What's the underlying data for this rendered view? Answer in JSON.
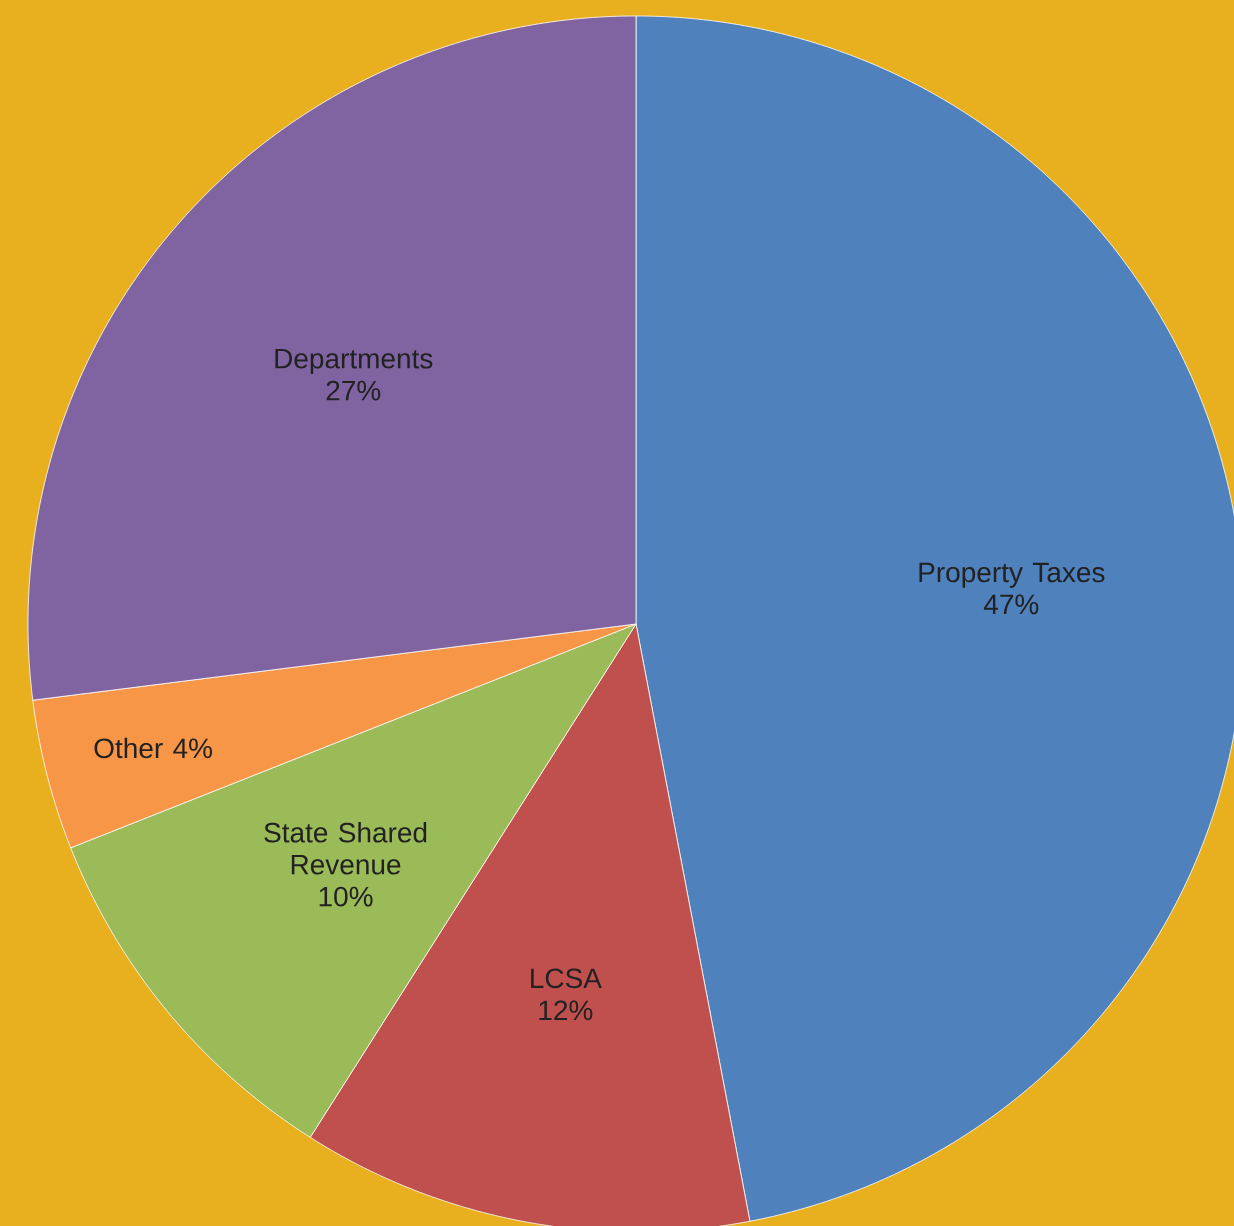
{
  "chart_data": {
    "type": "pie",
    "categories": [
      "Property Taxes",
      "LCSA",
      "State Shared Revenue",
      "Other",
      "Departments"
    ],
    "values": [
      47,
      12,
      10,
      4,
      27
    ],
    "value_labels": [
      "47%",
      "12%",
      "10%",
      "4%",
      "27%"
    ],
    "colors": [
      "#4f81bd",
      "#c0504d",
      "#9bbb59",
      "#f79646",
      "#8064a2"
    ]
  }
}
